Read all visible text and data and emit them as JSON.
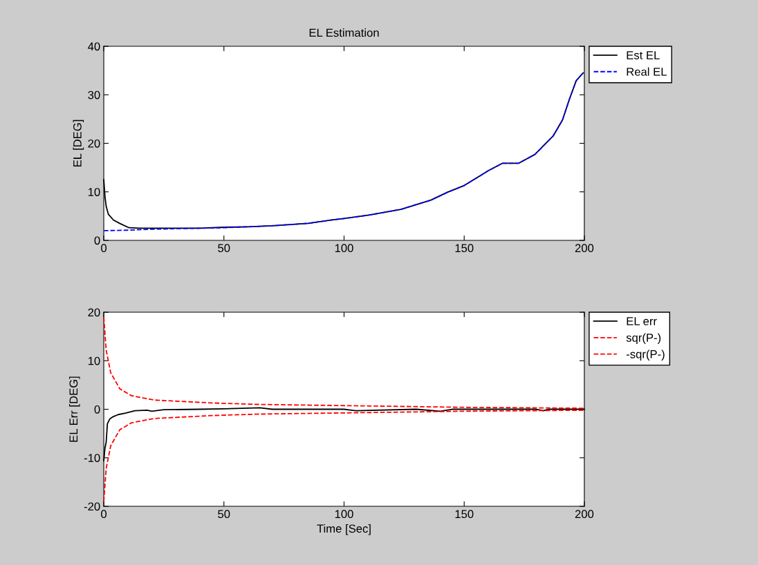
{
  "chart_data": [
    {
      "type": "line",
      "title": "EL Estimation",
      "ylabel": "EL [DEG]",
      "xlim": [
        0,
        200
      ],
      "ylim": [
        0,
        40
      ],
      "xticks": [
        0,
        50,
        100,
        150,
        200
      ],
      "yticks": [
        0,
        10,
        20,
        30,
        40
      ],
      "grid": false,
      "legend": "top right",
      "marker": "none",
      "series": [
        {
          "name": "Est EL",
          "color": "#000000",
          "line_style": "solid",
          "x": [
            0,
            0.5,
            1,
            1.9,
            4,
            6.6,
            10.5,
            15,
            20,
            30,
            40,
            50,
            60,
            70,
            85,
            95,
            100,
            110.3,
            123.7,
            136.2,
            143,
            150,
            160.2,
            166,
            172.7,
            179.4,
            187,
            190.9,
            193.8,
            196.6,
            199.5
          ],
          "values": [
            12.5,
            9,
            7,
            5.4,
            4.2,
            3.5,
            2.6,
            2.5,
            2.5,
            2.5,
            2.5,
            2.7,
            2.8,
            3,
            3.5,
            4.2,
            4.5,
            5.2,
            6.4,
            8.3,
            9.9,
            11.3,
            14.4,
            15.9,
            15.9,
            17.7,
            21.5,
            24.8,
            29.1,
            32.9,
            34.5
          ]
        },
        {
          "name": "Real EL",
          "color": "#0000ff",
          "line_style": "dashed",
          "x": [
            0,
            10,
            20,
            30,
            40,
            50,
            60,
            70,
            85,
            95,
            100,
            110.3,
            123.7,
            136.2,
            143,
            150,
            160.2,
            166,
            172.7,
            179.4,
            187,
            190.9,
            193.8,
            196.6,
            199.5
          ],
          "values": [
            2,
            2.1,
            2.3,
            2.4,
            2.5,
            2.6,
            2.8,
            3,
            3.5,
            4.2,
            4.5,
            5.2,
            6.4,
            8.3,
            9.9,
            11.3,
            14.4,
            15.9,
            15.9,
            17.7,
            21.5,
            24.8,
            29.1,
            32.9,
            34.5
          ]
        }
      ]
    },
    {
      "type": "line",
      "xlabel": "Time [Sec]",
      "ylabel": "EL Err [DEG]",
      "xlim": [
        0,
        200
      ],
      "ylim": [
        -20,
        20
      ],
      "xticks": [
        0,
        50,
        100,
        150,
        200
      ],
      "yticks": [
        -20,
        -10,
        0,
        10,
        20
      ],
      "grid": false,
      "legend": "top right",
      "marker": "none",
      "series": [
        {
          "name": "EL err",
          "color": "#000000",
          "line_style": "solid",
          "x": [
            0,
            0.5,
            1,
            1.5,
            2.5,
            4,
            6,
            9,
            13,
            18,
            20,
            25,
            40,
            50,
            65,
            70,
            100,
            105,
            130,
            140,
            145,
            150,
            170,
            180,
            183,
            185,
            200
          ],
          "values": [
            -10.6,
            -8,
            -6.8,
            -3,
            -2,
            -1.5,
            -1.1,
            -0.8,
            -0.3,
            -0.2,
            -0.4,
            -0.1,
            0,
            0.1,
            0.3,
            0,
            0,
            -0.3,
            0,
            -0.4,
            0,
            0,
            0,
            0,
            -0.3,
            0,
            0
          ]
        },
        {
          "name": "sqr(P-)",
          "color": "#ff0000",
          "line_style": "dashed",
          "x": [
            0,
            1,
            2.9,
            6.7,
            11.5,
            21,
            45,
            64,
            93,
            150,
            200
          ],
          "values": [
            19,
            12.2,
            7.5,
            4.2,
            2.8,
            1.9,
            1.3,
            1,
            0.8,
            0.4,
            0.2
          ]
        },
        {
          "name": "-sqr(P-)",
          "color": "#ff0000",
          "line_style": "dashed",
          "x": [
            0,
            1,
            2.9,
            6.7,
            11.5,
            21,
            45,
            64,
            93,
            150,
            200
          ],
          "values": [
            -19,
            -12.2,
            -7.5,
            -4.2,
            -2.8,
            -1.9,
            -1.3,
            -1,
            -0.8,
            -0.4,
            -0.2
          ]
        }
      ]
    }
  ]
}
